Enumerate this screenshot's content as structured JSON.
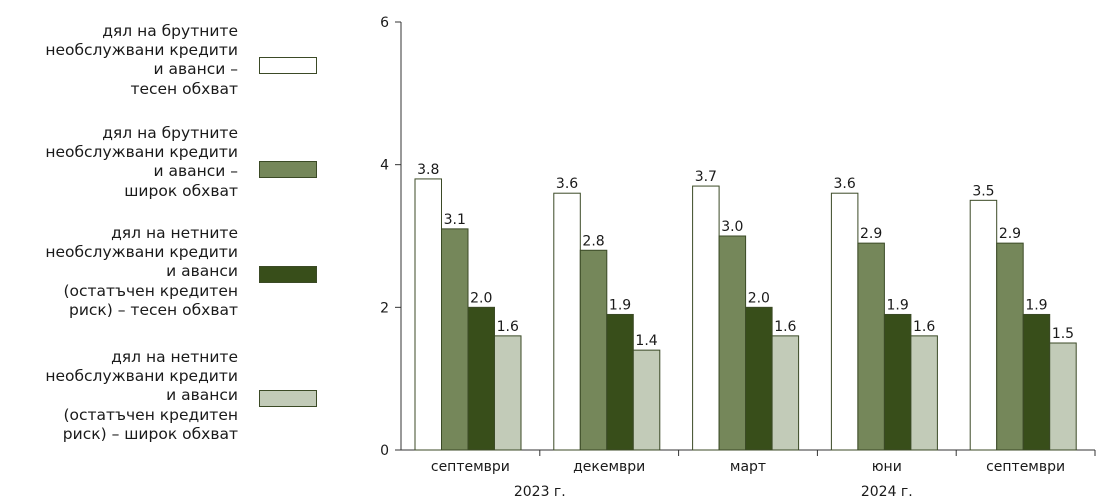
{
  "chart_data": {
    "type": "bar",
    "categories": [
      "септември",
      "декември",
      "март",
      "юни",
      "септември"
    ],
    "years": [
      "2023 г.",
      "2024 г."
    ],
    "ylim": [
      0,
      6
    ],
    "yticks": [
      "0",
      "2",
      "4",
      "6"
    ],
    "grid": false,
    "legend_position": "left",
    "series": [
      {
        "name": "дял на брутните\nнеобслужвани кредити\nи аванси –\nтесен обхват",
        "values": [
          3.8,
          3.6,
          3.7,
          3.6,
          3.5
        ],
        "labels": [
          "3.8",
          "3.6",
          "3.7",
          "3.6",
          "3.5"
        ],
        "color": "#ffffff"
      },
      {
        "name": "дял на брутните\nнеобслужвани кредити\nи аванси –\nширок обхват",
        "values": [
          3.1,
          2.8,
          3.0,
          2.9,
          2.9
        ],
        "labels": [
          "3.1",
          "2.8",
          "3.0",
          "2.9",
          "2.9"
        ],
        "color": "#75875a"
      },
      {
        "name": "дял на нетните\nнеобслужвани кредити\nи аванси\n(остатъчен кредитен\nриск) – тесен обхват",
        "values": [
          2.0,
          1.9,
          2.0,
          1.9,
          1.9
        ],
        "labels": [
          "2.0",
          "1.9",
          "2.0",
          "1.9",
          "1.9"
        ],
        "color": "#384e1a"
      },
      {
        "name": "дял на нетните\nнеобслужвани кредити\nи аванси\n(остатъчен кредитен\nриск) – широк обхват",
        "values": [
          1.6,
          1.4,
          1.6,
          1.6,
          1.5
        ],
        "labels": [
          "1.6",
          "1.4",
          "1.6",
          "1.6",
          "1.5"
        ],
        "color": "#c2cbb8"
      }
    ]
  }
}
